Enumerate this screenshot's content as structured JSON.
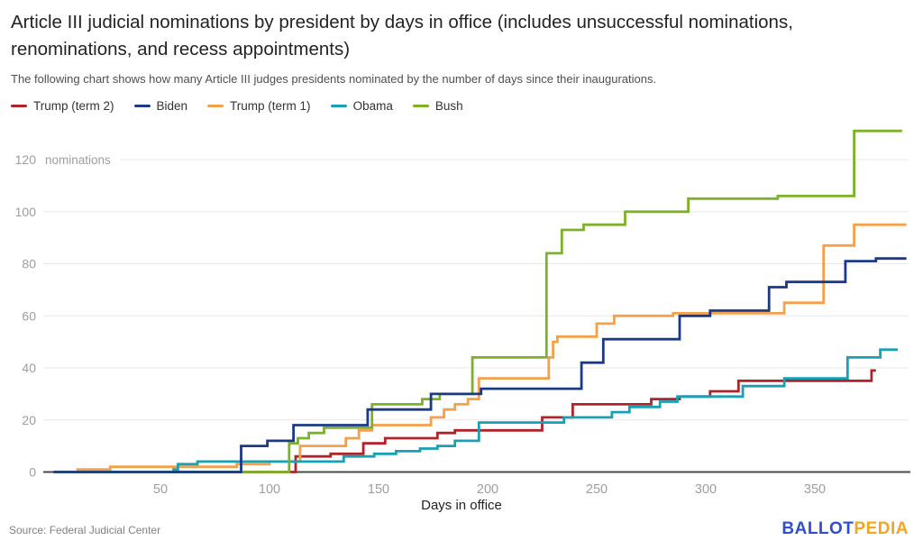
{
  "header": {
    "title": "Article III judicial nominations by president by days in office (includes unsuccessful nominations, renominations, and recess appointments)",
    "subtitle": "The following chart shows how many Article III judges presidents nominated by the number of days since their inaugurations."
  },
  "legend": [
    {
      "label": "Trump (term 2)",
      "color": "#b0232a"
    },
    {
      "label": "Biden",
      "color": "#1b3a85"
    },
    {
      "label": "Trump (term 1)",
      "color": "#f5a04b"
    },
    {
      "label": "Obama",
      "color": "#18a0b4"
    },
    {
      "label": "Bush",
      "color": "#7cb228"
    }
  ],
  "chart_data": {
    "type": "line",
    "step": true,
    "title": "Article III judicial nominations by president by days in office",
    "xlabel": "Days in office",
    "ylabel": "nominations",
    "xlim": [
      0,
      395
    ],
    "ylim": [
      0,
      131
    ],
    "x_ticks": [
      50,
      100,
      150,
      200,
      250,
      300,
      350
    ],
    "y_ticks": [
      0,
      20,
      40,
      60,
      80,
      100,
      120
    ],
    "grid": true,
    "legend_position": "top-left",
    "series": [
      {
        "name": "Trump (term 2)",
        "color": "#b0232a",
        "points": [
          [
            1,
            0
          ],
          [
            112,
            6
          ],
          [
            128,
            7
          ],
          [
            143,
            11
          ],
          [
            153,
            13
          ],
          [
            177,
            15
          ],
          [
            185,
            16
          ],
          [
            225,
            21
          ],
          [
            239,
            26
          ],
          [
            275,
            28
          ],
          [
            288,
            29
          ],
          [
            302,
            31
          ],
          [
            315,
            35
          ],
          [
            376,
            39
          ],
          [
            378,
            39
          ]
        ]
      },
      {
        "name": "Trump (term 1)",
        "color": "#f5a04b",
        "points": [
          [
            1,
            0
          ],
          [
            12,
            1
          ],
          [
            27,
            2
          ],
          [
            85,
            3
          ],
          [
            100,
            4
          ],
          [
            114,
            10
          ],
          [
            135,
            13
          ],
          [
            141,
            16
          ],
          [
            147,
            18
          ],
          [
            174,
            21
          ],
          [
            180,
            24
          ],
          [
            185,
            26
          ],
          [
            191,
            28
          ],
          [
            196,
            36
          ],
          [
            228,
            44
          ],
          [
            230,
            50
          ],
          [
            232,
            52
          ],
          [
            250,
            57
          ],
          [
            258,
            60
          ],
          [
            285,
            61
          ],
          [
            336,
            65
          ],
          [
            354,
            87
          ],
          [
            368,
            95
          ],
          [
            392,
            95
          ]
        ]
      },
      {
        "name": "Obama",
        "color": "#18a0b4",
        "points": [
          [
            1,
            0
          ],
          [
            56,
            1
          ],
          [
            58,
            3
          ],
          [
            67,
            4
          ],
          [
            134,
            6
          ],
          [
            148,
            7
          ],
          [
            158,
            8
          ],
          [
            169,
            9
          ],
          [
            177,
            10
          ],
          [
            185,
            12
          ],
          [
            196,
            19
          ],
          [
            235,
            21
          ],
          [
            257,
            23
          ],
          [
            265,
            25
          ],
          [
            279,
            27
          ],
          [
            287,
            29
          ],
          [
            317,
            33
          ],
          [
            336,
            36
          ],
          [
            365,
            44
          ],
          [
            380,
            47
          ],
          [
            388,
            47
          ]
        ]
      },
      {
        "name": "Bush",
        "color": "#7cb228",
        "points": [
          [
            1,
            0
          ],
          [
            109,
            11
          ],
          [
            113,
            13
          ],
          [
            118,
            15
          ],
          [
            125,
            17
          ],
          [
            147,
            26
          ],
          [
            170,
            28
          ],
          [
            178,
            30
          ],
          [
            193,
            44
          ],
          [
            227,
            84
          ],
          [
            234,
            93
          ],
          [
            244,
            95
          ],
          [
            263,
            100
          ],
          [
            292,
            105
          ],
          [
            333,
            106
          ],
          [
            368,
            131
          ],
          [
            390,
            131
          ]
        ]
      },
      {
        "name": "Biden",
        "color": "#1b3a85",
        "points": [
          [
            1,
            0
          ],
          [
            87,
            10
          ],
          [
            99,
            12
          ],
          [
            111,
            18
          ],
          [
            145,
            24
          ],
          [
            174,
            30
          ],
          [
            197,
            32
          ],
          [
            243,
            42
          ],
          [
            253,
            51
          ],
          [
            288,
            60
          ],
          [
            302,
            62
          ],
          [
            329,
            71
          ],
          [
            337,
            73
          ],
          [
            364,
            81
          ],
          [
            378,
            82
          ],
          [
            392,
            82
          ]
        ]
      }
    ]
  },
  "axes_text": {
    "x_title": "Days in office",
    "y_unit_label": "nominations"
  },
  "footer": {
    "source": "Source: Federal Judicial Center",
    "logo_part1": "BALLOT",
    "logo_part2": "PEDIA",
    "logo_color1": "#2e4fd0",
    "logo_color2": "#f4a522"
  },
  "style_colors": {
    "grid": "#e8e8e8",
    "axis": "#4a4a4a",
    "tick_label": "#9e9e9e"
  }
}
